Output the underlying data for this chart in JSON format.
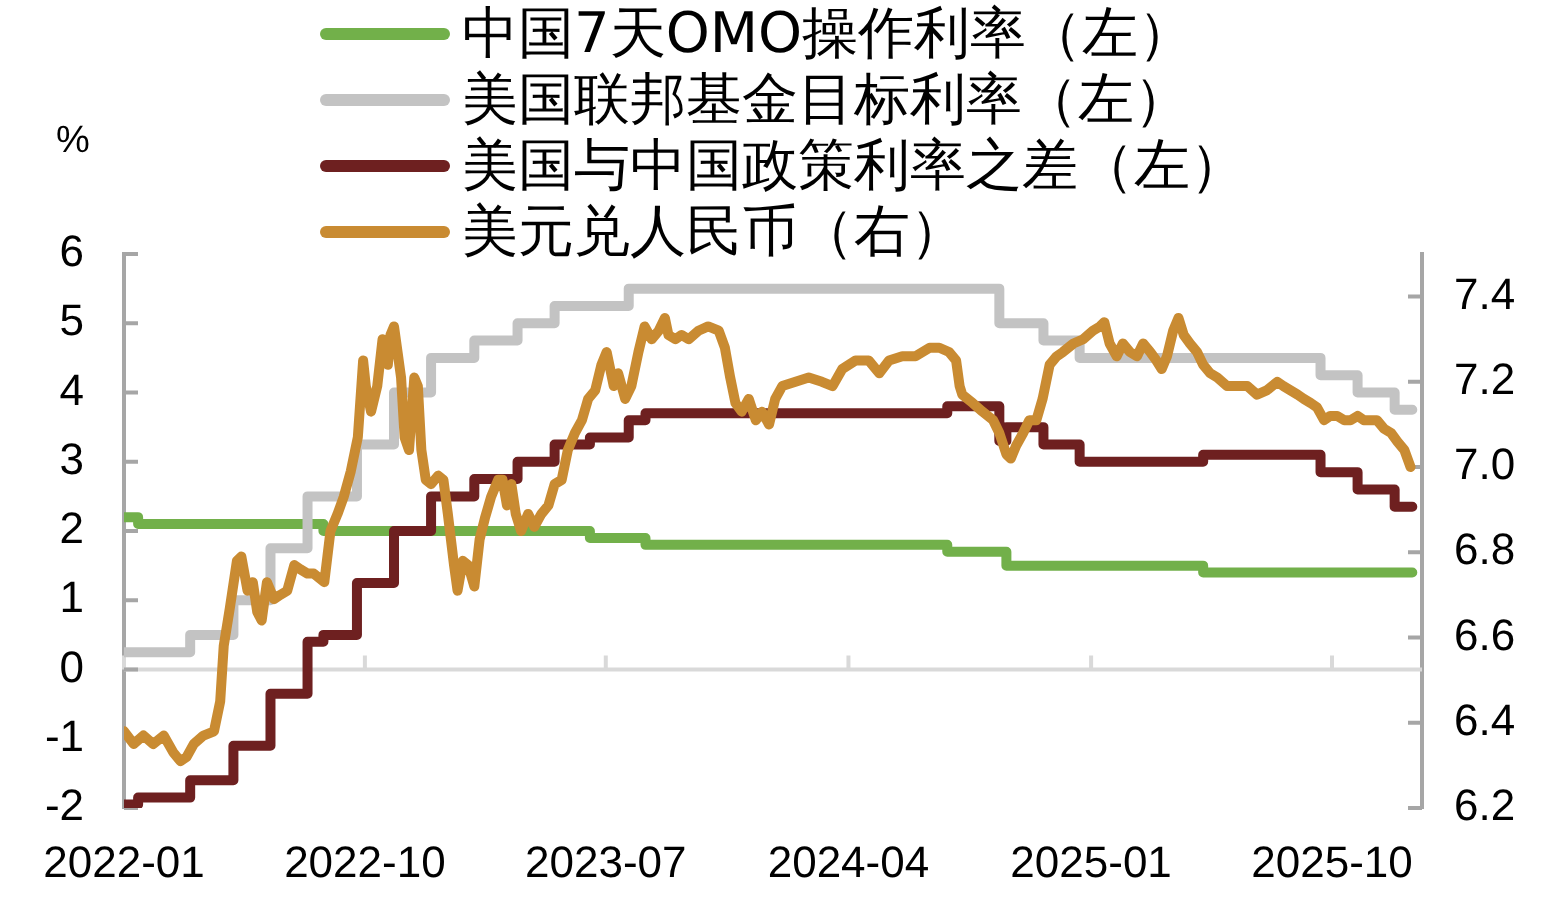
{
  "chart_data": {
    "type": "step",
    "ylabel": "%",
    "legend": "top",
    "xlim": [
      "2022-01-01",
      "2026-01-11"
    ],
    "xticks": [
      "2022-01",
      "2022-10",
      "2023-07",
      "2024-04",
      "2025-01",
      "2025-10"
    ],
    "ylim": [
      -2,
      6
    ],
    "yticks": [
      -2,
      -1,
      0,
      1,
      2,
      3,
      4,
      5,
      6
    ],
    "y2lim": [
      6.2,
      7.5
    ],
    "y2ticks": [
      6.2,
      6.4,
      6.6,
      6.8,
      {
        "value": 7,
        "label": "7.0"
      },
      7.2,
      7.4
    ],
    "series": [
      {
        "name": "中国7天OMO操作利率（左）",
        "color": "#72b04a",
        "x": [
          "2022-01-01",
          "2022-01-17",
          "2022-08-15",
          "2023-06-13",
          "2023-08-15",
          "2024-07-22",
          "2024-09-27",
          "2025-05-08",
          "2025-12-31"
        ],
        "values": [
          2.2,
          2.1,
          2.0,
          1.9,
          1.8,
          1.7,
          1.5,
          1.4,
          1.4
        ]
      },
      {
        "name": "美国联邦基金目标利率（左）",
        "color": "#c3c3c3",
        "x": [
          "2022-01-01",
          "2022-03-17",
          "2022-05-05",
          "2022-06-16",
          "2022-07-28",
          "2022-09-22",
          "2022-11-03",
          "2022-12-15",
          "2023-02-02",
          "2023-03-23",
          "2023-05-04",
          "2023-07-27",
          "2024-09-19",
          "2024-11-08",
          "2024-12-19",
          "2025-09-18",
          "2025-10-30",
          "2025-12-11",
          "2025-12-31"
        ],
        "values": [
          0.25,
          0.5,
          1.0,
          1.75,
          2.5,
          3.25,
          4.0,
          4.5,
          4.75,
          5.0,
          5.25,
          5.5,
          5.0,
          4.75,
          4.5,
          4.25,
          4.0,
          3.75,
          3.75
        ]
      },
      {
        "name": "美国与中国政策利率之差（左）",
        "color": "#6e2020",
        "x": [
          "2022-01-01",
          "2022-01-17",
          "2022-03-17",
          "2022-05-05",
          "2022-06-16",
          "2022-07-28",
          "2022-08-15",
          "2022-09-22",
          "2022-11-03",
          "2022-12-15",
          "2023-02-02",
          "2023-03-23",
          "2023-05-04",
          "2023-06-13",
          "2023-07-27",
          "2023-08-15",
          "2024-07-22",
          "2024-09-19",
          "2024-09-27",
          "2024-11-08",
          "2024-12-19",
          "2025-05-08",
          "2025-09-18",
          "2025-10-30",
          "2025-12-11",
          "2025-12-31"
        ],
        "values": [
          -1.95,
          -1.85,
          -1.6,
          -1.1,
          -0.35,
          0.4,
          0.5,
          1.25,
          2.0,
          2.5,
          2.75,
          3.0,
          3.25,
          3.35,
          3.6,
          3.7,
          3.8,
          3.3,
          3.5,
          3.25,
          3.0,
          3.1,
          2.85,
          2.6,
          2.35,
          2.35
        ]
      },
      {
        "name": "美元兑人民币（右）",
        "type": "line",
        "axis": "y2",
        "color": "#c98b32",
        "x": [
          "2022-01-01",
          "2022-01-12",
          "2022-01-23",
          "2022-02-03",
          "2022-02-15",
          "2022-02-26",
          "2022-03-06",
          "2022-03-13",
          "2022-03-21",
          "2022-04-01",
          "2022-04-13",
          "2022-04-20",
          "2022-04-24",
          "2022-05-01",
          "2022-05-09",
          "2022-05-14",
          "2022-05-21",
          "2022-05-27",
          "2022-06-01",
          "2022-06-06",
          "2022-06-12",
          "2022-06-20",
          "2022-06-27",
          "2022-07-05",
          "2022-07-13",
          "2022-07-20",
          "2022-07-28",
          "2022-08-04",
          "2022-08-16",
          "2022-08-23",
          "2022-08-31",
          "2022-09-07",
          "2022-09-15",
          "2022-09-23",
          "2022-09-29",
          "2022-10-02",
          "2022-10-08",
          "2022-10-15",
          "2022-10-21",
          "2022-10-27",
          "2022-10-30",
          "2022-11-03",
          "2022-11-07",
          "2022-11-11",
          "2022-11-15",
          "2022-11-20",
          "2022-11-26",
          "2022-11-30",
          "2022-12-04",
          "2022-12-09",
          "2022-12-15",
          "2022-12-23",
          "2022-12-29",
          "2023-01-03",
          "2023-01-10",
          "2023-01-14",
          "2023-01-20",
          "2023-01-26",
          "2023-02-02",
          "2023-02-08",
          "2023-02-14",
          "2023-02-21",
          "2023-03-01",
          "2023-03-06",
          "2023-03-11",
          "2023-03-16",
          "2023-03-21",
          "2023-03-27",
          "2023-04-04",
          "2023-04-11",
          "2023-04-19",
          "2023-04-27",
          "2023-05-04",
          "2023-05-12",
          "2023-05-19",
          "2023-05-27",
          "2023-06-04",
          "2023-06-11",
          "2023-06-19",
          "2023-06-26",
          "2023-07-02",
          "2023-07-10",
          "2023-07-15",
          "2023-07-23",
          "2023-07-30",
          "2023-08-07",
          "2023-08-14",
          "2023-08-22",
          "2023-08-30",
          "2023-09-06",
          "2023-09-10",
          "2023-09-18",
          "2023-09-25",
          "2023-10-03",
          "2023-10-14",
          "2023-10-25",
          "2023-11-06",
          "2023-11-13",
          "2023-11-19",
          "2023-11-25",
          "2023-12-02",
          "2023-12-10",
          "2023-12-18",
          "2023-12-25",
          "2024-01-02",
          "2024-01-09",
          "2024-01-17",
          "2024-02-01",
          "2024-02-16",
          "2024-03-02",
          "2024-03-14",
          "2024-03-25",
          "2024-04-09",
          "2024-04-24",
          "2024-05-06",
          "2024-05-17",
          "2024-06-01",
          "2024-06-16",
          "2024-07-02",
          "2024-07-13",
          "2024-07-24",
          "2024-08-01",
          "2024-08-05",
          "2024-08-08",
          "2024-08-20",
          "2024-08-31",
          "2024-09-12",
          "2024-09-19",
          "2024-09-27",
          "2024-10-02",
          "2024-10-08",
          "2024-10-16",
          "2024-10-23",
          "2024-10-31",
          "2024-11-07",
          "2024-11-15",
          "2024-11-23",
          "2024-11-30",
          "2024-12-12",
          "2024-12-23",
          "2025-01-03",
          "2025-01-11",
          "2025-01-16",
          "2025-01-22",
          "2025-01-30",
          "2025-02-06",
          "2025-02-14",
          "2025-02-22",
          "2025-03-01",
          "2025-03-09",
          "2025-03-16",
          "2025-03-22",
          "2025-03-28",
          "2025-04-04",
          "2025-04-10",
          "2025-04-16",
          "2025-04-23",
          "2025-05-01",
          "2025-05-08",
          "2025-05-16",
          "2025-05-24",
          "2025-06-04",
          "2025-06-15",
          "2025-06-27",
          "2025-07-08",
          "2025-07-19",
          "2025-07-31",
          "2025-08-07",
          "2025-08-15",
          "2025-08-23",
          "2025-08-30",
          "2025-09-07",
          "2025-09-14",
          "2025-09-22",
          "2025-09-29",
          "2025-10-07",
          "2025-10-15",
          "2025-10-22",
          "2025-10-30",
          "2025-11-06",
          "2025-11-14",
          "2025-11-21",
          "2025-11-29",
          "2025-12-07",
          "2025-12-14",
          "2025-12-22",
          "2025-12-29"
        ],
        "values": [
          6.38,
          6.35,
          6.37,
          6.35,
          6.37,
          6.33,
          6.31,
          6.32,
          6.35,
          6.37,
          6.38,
          6.45,
          6.58,
          6.67,
          6.78,
          6.79,
          6.71,
          6.73,
          6.66,
          6.64,
          6.73,
          6.69,
          6.7,
          6.71,
          6.77,
          6.76,
          6.75,
          6.75,
          6.73,
          6.85,
          6.89,
          6.93,
          6.99,
          7.07,
          7.25,
          7.19,
          7.13,
          7.19,
          7.3,
          7.24,
          7.31,
          7.33,
          7.27,
          7.21,
          7.07,
          7.04,
          7.21,
          7.19,
          7.04,
          6.97,
          6.96,
          6.98,
          6.97,
          6.89,
          6.77,
          6.71,
          6.78,
          6.77,
          6.72,
          6.83,
          6.88,
          6.93,
          6.97,
          6.97,
          6.91,
          6.96,
          6.89,
          6.85,
          6.89,
          6.86,
          6.89,
          6.91,
          6.96,
          6.97,
          7.04,
          7.08,
          7.11,
          7.16,
          7.18,
          7.24,
          7.27,
          7.19,
          7.22,
          7.16,
          7.19,
          7.27,
          7.33,
          7.3,
          7.32,
          7.35,
          7.31,
          7.3,
          7.31,
          7.3,
          7.32,
          7.33,
          7.32,
          7.28,
          7.21,
          7.15,
          7.13,
          7.16,
          7.11,
          7.13,
          7.1,
          7.16,
          7.19,
          7.2,
          7.21,
          7.2,
          7.19,
          7.23,
          7.25,
          7.25,
          7.22,
          7.25,
          7.26,
          7.26,
          7.28,
          7.28,
          7.27,
          7.25,
          7.19,
          7.17,
          7.15,
          7.13,
          7.11,
          7.08,
          7.03,
          7.02,
          7.05,
          7.08,
          7.11,
          7.11,
          7.16,
          7.24,
          7.26,
          7.27,
          7.29,
          7.3,
          7.32,
          7.33,
          7.34,
          7.29,
          7.26,
          7.29,
          7.27,
          7.26,
          7.29,
          7.27,
          7.25,
          7.23,
          7.26,
          7.32,
          7.35,
          7.31,
          7.29,
          7.27,
          7.24,
          7.22,
          7.21,
          7.19,
          7.19,
          7.19,
          7.17,
          7.18,
          7.2,
          7.19,
          7.18,
          7.17,
          7.16,
          7.15,
          7.14,
          7.11,
          7.12,
          7.12,
          7.11,
          7.11,
          7.12,
          7.11,
          7.11,
          7.11,
          7.09,
          7.08,
          7.06,
          7.04,
          7.0
        ]
      }
    ]
  }
}
